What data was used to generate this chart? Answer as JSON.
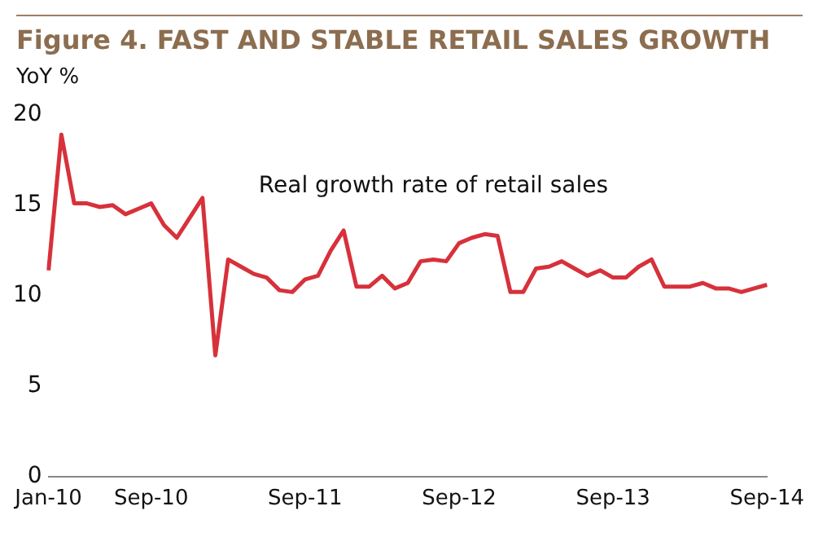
{
  "chart_data": {
    "type": "line",
    "title": "Figure 4. FAST AND STABLE RETAIL SALES GROWTH",
    "ylabel": "YoY %",
    "categories": [
      "Jan-10",
      null,
      null,
      null,
      null,
      null,
      null,
      null,
      "Sep-10",
      null,
      null,
      null,
      null,
      null,
      null,
      null,
      null,
      null,
      null,
      null,
      "Sep-11",
      null,
      null,
      null,
      null,
      null,
      null,
      null,
      null,
      null,
      null,
      null,
      "Sep-12",
      null,
      null,
      null,
      null,
      null,
      null,
      null,
      null,
      null,
      null,
      null,
      "Sep-13",
      null,
      null,
      null,
      null,
      null,
      null,
      null,
      null,
      null,
      null,
      null,
      "Sep-14"
    ],
    "series": [
      {
        "name": "Real growth rate of retail sales",
        "color": "#d7313b",
        "values": [
          11.4,
          18.9,
          15.1,
          15.1,
          14.9,
          15.0,
          14.5,
          14.8,
          15.1,
          13.9,
          13.2,
          14.3,
          15.4,
          6.7,
          12.0,
          11.6,
          11.2,
          11.0,
          10.3,
          10.2,
          10.9,
          11.1,
          12.5,
          13.6,
          10.5,
          10.5,
          11.1,
          10.4,
          10.7,
          11.9,
          12.0,
          11.9,
          12.9,
          13.2,
          13.4,
          13.3,
          10.2,
          10.2,
          11.5,
          11.6,
          11.9,
          11.5,
          11.1,
          11.4,
          11.0,
          11.0,
          11.6,
          12.0,
          10.5,
          10.5,
          10.5,
          10.7,
          10.4,
          10.4,
          10.2,
          10.4,
          10.6
        ]
      }
    ],
    "ylim": [
      0,
      20
    ],
    "yticks": [
      0,
      5,
      10,
      15,
      20
    ],
    "grid": false,
    "legend": false,
    "marker": "none",
    "line_style": "solid"
  }
}
